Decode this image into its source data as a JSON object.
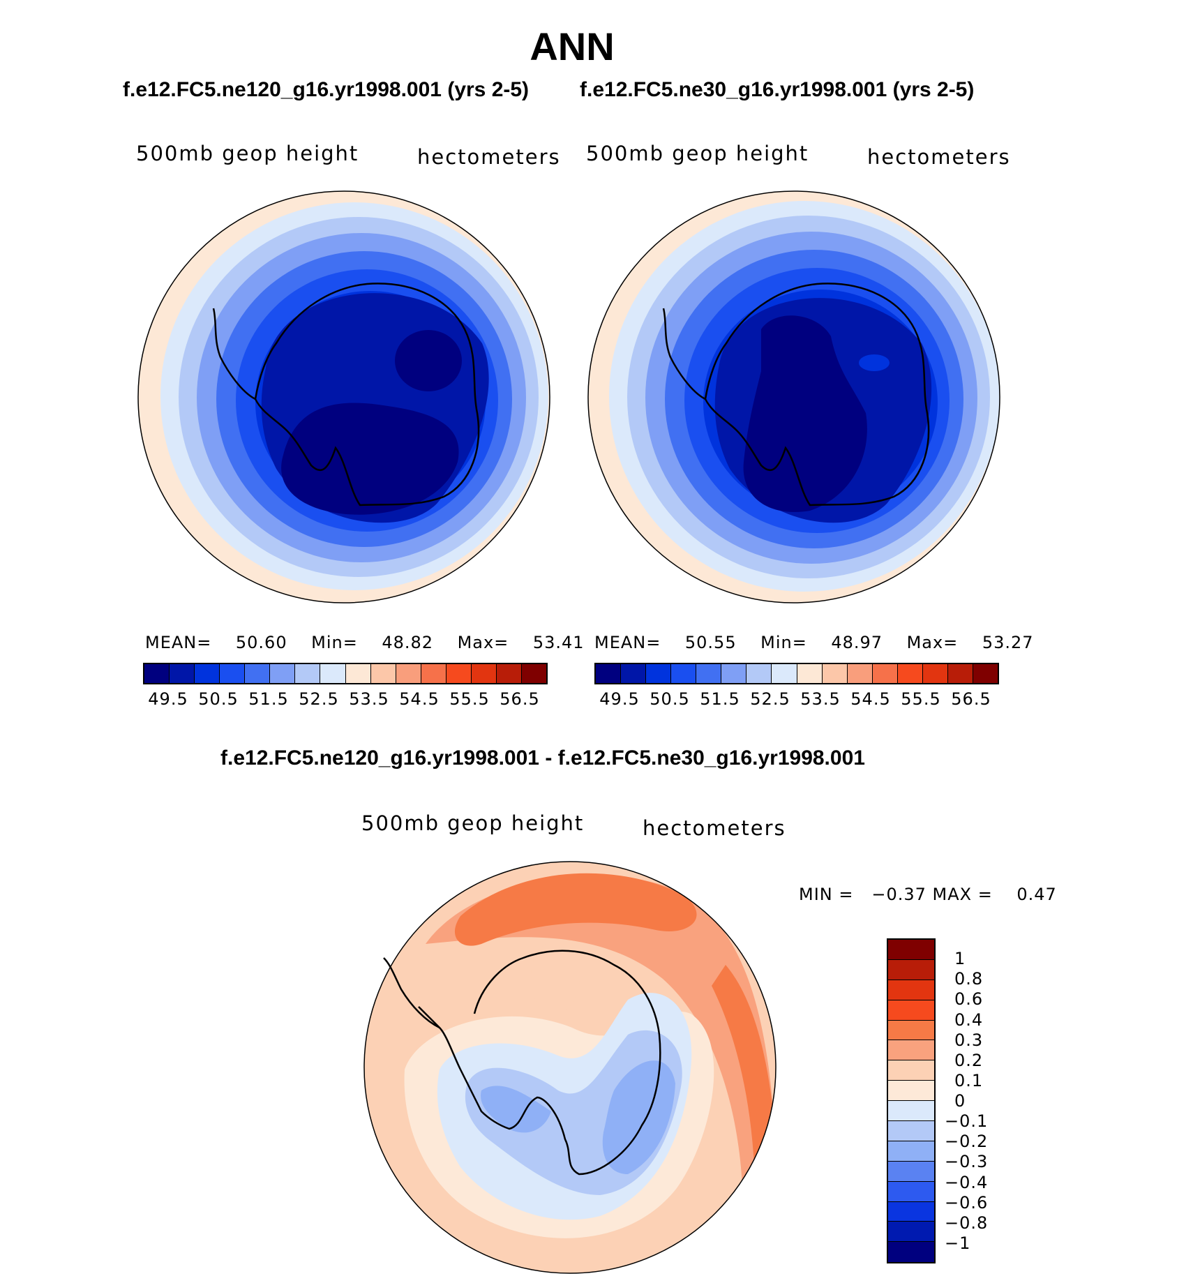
{
  "title": "ANN",
  "panels": [
    {
      "case": "f.e12.FC5.ne120_g16.yr1998.001 (yrs 2-5)",
      "variable": "500mb geop height",
      "units": "hectometers",
      "mean_label": "MEAN=",
      "mean": "50.60",
      "min_label": "Min=",
      "min": "48.82",
      "max_label": "Max=",
      "max": "53.41"
    },
    {
      "case": "f.e12.FC5.ne30_g16.yr1998.001 (yrs 2-5)",
      "variable": "500mb geop height",
      "units": "hectometers",
      "mean_label": "MEAN=",
      "mean": "50.55",
      "min_label": "Min=",
      "min": "48.97",
      "max_label": "Max=",
      "max": "53.27"
    }
  ],
  "abs_colorbar": {
    "colors": [
      "#00007f",
      "#0016a8",
      "#0033dd",
      "#1a4ff0",
      "#4170f2",
      "#7f9ff5",
      "#b3c9f7",
      "#dbe9fb",
      "#fde8d6",
      "#fcc7a9",
      "#f99e7c",
      "#f6714a",
      "#f64a1e",
      "#e23510",
      "#b81d08",
      "#7f0000"
    ],
    "ticks": [
      "49.5",
      "50.5",
      "51.5",
      "52.5",
      "53.5",
      "54.5",
      "55.5",
      "56.5"
    ]
  },
  "diff_panel": {
    "case": "f.e12.FC5.ne120_g16.yr1998.001 - f.e12.FC5.ne30_g16.yr1998.001",
    "variable": "500mb geop height",
    "units": "hectometers",
    "minmax_text": "MIN =   −0.37 MAX =    0.47"
  },
  "diff_colorbar": {
    "colors": [
      "#7f0000",
      "#b81d08",
      "#e23510",
      "#f64a1e",
      "#f67a46",
      "#f9a27e",
      "#fcd1b5",
      "#fde9d8",
      "#dbe9fb",
      "#b3c9f7",
      "#8fb0f6",
      "#5a82f2",
      "#2d5af0",
      "#0a35e0",
      "#001ab0",
      "#00007f"
    ],
    "ticks": [
      "1",
      "0.8",
      "0.6",
      "0.4",
      "0.3",
      "0.2",
      "0.1",
      "0",
      "−0.1",
      "−0.2",
      "−0.3",
      "−0.4",
      "−0.6",
      "−0.8",
      "−1"
    ]
  }
}
